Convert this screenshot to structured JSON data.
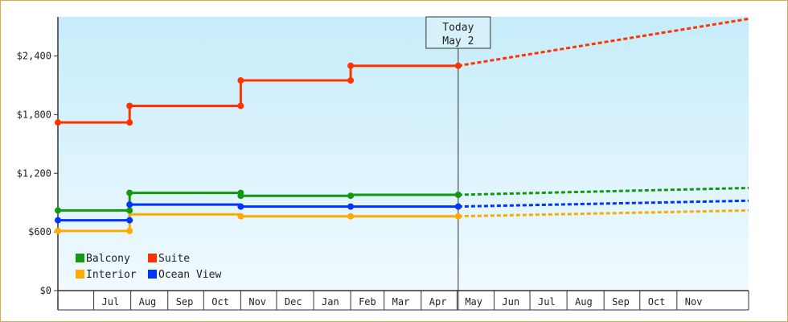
{
  "chart_data": {
    "type": "line",
    "title": "",
    "xlabel": "",
    "ylabel": "",
    "ylim": [
      0,
      2800
    ],
    "yticks": [
      0,
      600,
      1200,
      1800,
      2400
    ],
    "ytick_labels": [
      "$0",
      "$600",
      "$1,200",
      "$1,800",
      "$2,400"
    ],
    "x_start": "2020-06-01",
    "x_end": "2021-12-31",
    "month_labels": [
      {
        "date": "2020-07-15",
        "label": "Jul"
      },
      {
        "date": "2020-08-15",
        "label": "Aug"
      },
      {
        "date": "2020-09-15",
        "label": "Sep"
      },
      {
        "date": "2020-10-15",
        "label": "Oct"
      },
      {
        "date": "2020-11-15",
        "label": "Nov"
      },
      {
        "date": "2020-12-15",
        "label": "Dec"
      },
      {
        "date": "2021-01-15",
        "label": "Jan"
      },
      {
        "date": "2021-02-15",
        "label": "Feb"
      },
      {
        "date": "2021-03-15",
        "label": "Mar"
      },
      {
        "date": "2021-04-15",
        "label": "Apr"
      },
      {
        "date": "2021-05-15",
        "label": "May"
      },
      {
        "date": "2021-06-15",
        "label": "Jun"
      },
      {
        "date": "2021-07-15",
        "label": "Jul"
      },
      {
        "date": "2021-08-15",
        "label": "Aug"
      },
      {
        "date": "2021-09-15",
        "label": "Sep"
      },
      {
        "date": "2021-10-15",
        "label": "Oct"
      },
      {
        "date": "2021-11-15",
        "label": "Nov"
      }
    ],
    "today": {
      "date": "2021-05-02",
      "line1": "Today",
      "line2": "May 2"
    },
    "legend_position": "bottom-left",
    "series": [
      {
        "name": "Suite",
        "color": "#ff3300",
        "points": [
          [
            "2020-06-01",
            1720
          ],
          [
            "2020-07-31",
            1720
          ],
          [
            "2020-07-31",
            1890
          ],
          [
            "2020-11-01",
            1890
          ],
          [
            "2020-11-01",
            2150
          ],
          [
            "2021-02-01",
            2150
          ],
          [
            "2021-02-01",
            2300
          ],
          [
            "2021-05-02",
            2300
          ]
        ],
        "projection": [
          [
            "2021-05-02",
            2300
          ],
          [
            "2021-12-31",
            2780
          ]
        ]
      },
      {
        "name": "Balcony",
        "color": "#119911",
        "points": [
          [
            "2020-06-01",
            820
          ],
          [
            "2020-07-31",
            820
          ],
          [
            "2020-07-31",
            1000
          ],
          [
            "2020-11-01",
            1000
          ],
          [
            "2020-11-01",
            970
          ],
          [
            "2021-02-01",
            970
          ],
          [
            "2021-02-01",
            980
          ],
          [
            "2021-05-02",
            980
          ]
        ],
        "projection": [
          [
            "2021-05-02",
            980
          ],
          [
            "2021-12-31",
            1050
          ]
        ]
      },
      {
        "name": "Ocean View",
        "color": "#0033ff",
        "points": [
          [
            "2020-06-01",
            720
          ],
          [
            "2020-07-31",
            720
          ],
          [
            "2020-07-31",
            880
          ],
          [
            "2020-11-01",
            880
          ],
          [
            "2020-11-01",
            860
          ],
          [
            "2021-05-02",
            860
          ]
        ],
        "projection": [
          [
            "2021-05-02",
            860
          ],
          [
            "2021-12-31",
            920
          ]
        ]
      },
      {
        "name": "Interior",
        "color": "#ffaa00",
        "points": [
          [
            "2020-06-01",
            610
          ],
          [
            "2020-07-31",
            610
          ],
          [
            "2020-07-31",
            780
          ],
          [
            "2020-11-01",
            780
          ],
          [
            "2020-11-01",
            760
          ],
          [
            "2021-05-02",
            760
          ]
        ],
        "projection": [
          [
            "2021-05-02",
            760
          ],
          [
            "2021-12-31",
            820
          ]
        ]
      }
    ],
    "markers": [
      {
        "series": "Suite",
        "x": "2020-06-01",
        "y": 1720
      },
      {
        "series": "Suite",
        "x": "2020-07-31",
        "y": 1720
      },
      {
        "series": "Suite",
        "x": "2020-07-31",
        "y": 1890
      },
      {
        "series": "Suite",
        "x": "2020-11-01",
        "y": 1890
      },
      {
        "series": "Suite",
        "x": "2020-11-01",
        "y": 2150
      },
      {
        "series": "Suite",
        "x": "2021-02-01",
        "y": 2150
      },
      {
        "series": "Suite",
        "x": "2021-02-01",
        "y": 2300
      },
      {
        "series": "Suite",
        "x": "2021-05-02",
        "y": 2300
      },
      {
        "series": "Balcony",
        "x": "2020-06-01",
        "y": 820
      },
      {
        "series": "Balcony",
        "x": "2020-07-31",
        "y": 820
      },
      {
        "series": "Balcony",
        "x": "2020-07-31",
        "y": 1000
      },
      {
        "series": "Balcony",
        "x": "2020-11-01",
        "y": 1000
      },
      {
        "series": "Balcony",
        "x": "2020-11-01",
        "y": 970
      },
      {
        "series": "Balcony",
        "x": "2021-02-01",
        "y": 970
      },
      {
        "series": "Balcony",
        "x": "2021-05-02",
        "y": 980
      },
      {
        "series": "Ocean View",
        "x": "2020-06-01",
        "y": 720
      },
      {
        "series": "Ocean View",
        "x": "2020-07-31",
        "y": 720
      },
      {
        "series": "Ocean View",
        "x": "2020-07-31",
        "y": 880
      },
      {
        "series": "Ocean View",
        "x": "2020-11-01",
        "y": 860
      },
      {
        "series": "Ocean View",
        "x": "2021-02-01",
        "y": 860
      },
      {
        "series": "Ocean View",
        "x": "2021-05-02",
        "y": 860
      },
      {
        "series": "Interior",
        "x": "2020-06-01",
        "y": 610
      },
      {
        "series": "Interior",
        "x": "2020-07-31",
        "y": 610
      },
      {
        "series": "Interior",
        "x": "2020-11-01",
        "y": 760
      },
      {
        "series": "Interior",
        "x": "2021-02-01",
        "y": 760
      },
      {
        "series": "Interior",
        "x": "2021-05-02",
        "y": 760
      }
    ],
    "legend": [
      {
        "name": "Balcony",
        "color": "#119911"
      },
      {
        "name": "Suite",
        "color": "#ff3300"
      },
      {
        "name": "Interior",
        "color": "#ffaa00"
      },
      {
        "name": "Ocean View",
        "color": "#0033ff"
      }
    ],
    "colors": {
      "frame_border": "#e3a64a",
      "plot_top": "#c6ecfa",
      "plot_bottom": "#f0faff"
    }
  }
}
